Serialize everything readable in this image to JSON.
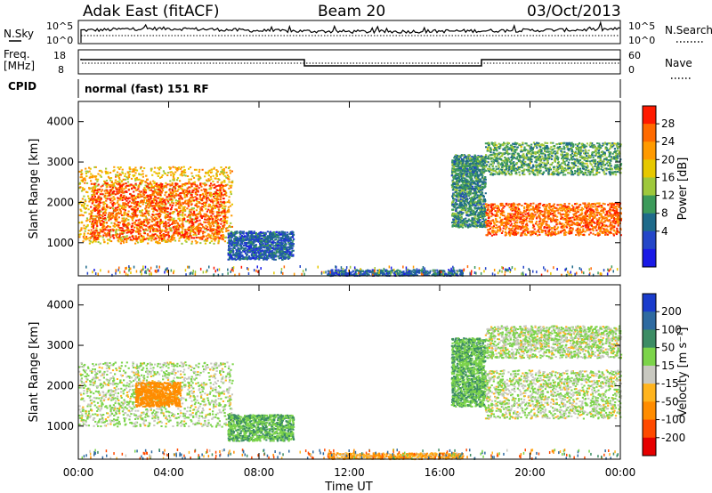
{
  "header": {
    "station": "Adak East (fitACF)",
    "beam": "Beam 20",
    "date": "03/Oct/2013"
  },
  "strips": {
    "nsky_label": "N.Sky",
    "nsearch_label": "N.Search",
    "nsky_ticks": [
      "10^5",
      "10^0"
    ],
    "nsearch_ticks": [
      "10^5",
      "10^0"
    ],
    "freq_label_1": "Freq.",
    "freq_label_2": "[MHz]",
    "freq_ticks": [
      "18",
      "8"
    ],
    "nave_label": "Nave",
    "nave_ticks": [
      "60",
      "0"
    ],
    "cpid_label": "CPID",
    "cpid_text": "normal (fast) 151 RF"
  },
  "power_colorbar": {
    "title": "Power [dB]",
    "ticks": [
      "28",
      "24",
      "20",
      "16",
      "12",
      "8",
      "4"
    ],
    "colors": [
      "#ff1a00",
      "#ff6a00",
      "#ff9a00",
      "#e6c800",
      "#9ec83c",
      "#3c9a5a",
      "#1e6a8a",
      "#2446c8",
      "#1a1ae6"
    ]
  },
  "velocity_colorbar": {
    "title": "Velocity [m s⁻¹]",
    "ticks": [
      "200",
      "100",
      "50",
      "15",
      "-15",
      "-50",
      "-100",
      "-200"
    ],
    "colors": [
      "#1a3ccc",
      "#2e6aa0",
      "#3c8c64",
      "#7cd44a",
      "#c8c8c0",
      "#ffb41e",
      "#ff8c00",
      "#ff4a00",
      "#e60000"
    ]
  },
  "axes": {
    "ylabel": "Slant Range [km]",
    "xlabel": "Time UT",
    "yticks": [
      "4000",
      "3000",
      "2000",
      "1000"
    ],
    "xticks": [
      "00:00",
      "04:00",
      "08:00",
      "12:00",
      "16:00",
      "20:00",
      "00:00"
    ]
  },
  "chart_data": [
    {
      "type": "line",
      "name": "N.Sky / N.Search",
      "x_hours": [
        0,
        1,
        2,
        3,
        4,
        6,
        8,
        10,
        12,
        14,
        16,
        18,
        20,
        22,
        24
      ],
      "series": [
        {
          "name": "N.Sky",
          "values": [
            2.5,
            2.6,
            2.8,
            2.9,
            2.9,
            2.7,
            2.4,
            2.3,
            2.2,
            2.2,
            2.3,
            2.4,
            2.5,
            2.6,
            2.8
          ]
        },
        {
          "name": "N.Search",
          "values": [
            1.6,
            1.6,
            1.6,
            1.6,
            1.6,
            1.6,
            1.6,
            1.6,
            1.6,
            1.6,
            1.6,
            1.6,
            1.6,
            1.6,
            1.6
          ]
        }
      ],
      "ylim": [
        "10^0",
        "10^5"
      ]
    },
    {
      "type": "line",
      "name": "Freq / Nave",
      "series": [
        {
          "name": "Freq. [MHz]",
          "segments": [
            [
              0,
              10,
              14.5
            ],
            [
              10,
              18,
              11
            ],
            [
              18,
              24,
              14.5
            ]
          ]
        },
        {
          "name": "Nave",
          "segments": [
            [
              0,
              24,
              18
            ]
          ]
        }
      ],
      "freq_ylim": [
        8,
        18
      ],
      "nave_ylim": [
        0,
        60
      ]
    },
    {
      "type": "heatmap",
      "name": "Power",
      "xlabel": "Time UT",
      "ylabel": "Slant Range [km]",
      "xlim_hours": [
        0,
        24
      ],
      "ylim_km": [
        180,
        4500
      ],
      "clim_dB": [
        0,
        30
      ],
      "features": [
        {
          "t": [
            0,
            6.8
          ],
          "range_km": [
            1000,
            2900
          ],
          "power_dB": 20
        },
        {
          "t": [
            0.5,
            6.5
          ],
          "range_km": [
            1100,
            2500
          ],
          "power_dB": 28
        },
        {
          "t": [
            6.6,
            9.5
          ],
          "range_km": [
            600,
            1300
          ],
          "power_dB": 6
        },
        {
          "t": [
            11,
            17
          ],
          "range_km": [
            200,
            350
          ],
          "power_dB": 6
        },
        {
          "t": [
            16.5,
            18
          ],
          "range_km": [
            1400,
            3200
          ],
          "power_dB": 10
        },
        {
          "t": [
            18,
            24
          ],
          "range_km": [
            1200,
            2000
          ],
          "power_dB": 26
        },
        {
          "t": [
            18,
            24
          ],
          "range_km": [
            2700,
            3500
          ],
          "power_dB": 12
        }
      ]
    },
    {
      "type": "heatmap",
      "name": "Velocity",
      "xlabel": "Time UT",
      "ylabel": "Slant Range [km]",
      "xlim_hours": [
        0,
        24
      ],
      "ylim_km": [
        180,
        4500
      ],
      "clim_ms": [
        -200,
        200
      ],
      "features": [
        {
          "t": [
            0,
            6.8
          ],
          "range_km": [
            1000,
            2600
          ],
          "velocity_ms": 0
        },
        {
          "t": [
            2.5,
            4.5
          ],
          "range_km": [
            1500,
            2100
          ],
          "velocity_ms": -50
        },
        {
          "t": [
            6.6,
            9.5
          ],
          "range_km": [
            650,
            1300
          ],
          "velocity_ms": 30
        },
        {
          "t": [
            11,
            17
          ],
          "range_km": [
            200,
            350
          ],
          "velocity_ms": -30
        },
        {
          "t": [
            16.5,
            18
          ],
          "range_km": [
            1500,
            3200
          ],
          "velocity_ms": 30
        },
        {
          "t": [
            18,
            24
          ],
          "range_km": [
            1200,
            2400
          ],
          "velocity_ms": 0
        },
        {
          "t": [
            18,
            24
          ],
          "range_km": [
            2700,
            3500
          ],
          "velocity_ms": 0
        }
      ]
    }
  ]
}
